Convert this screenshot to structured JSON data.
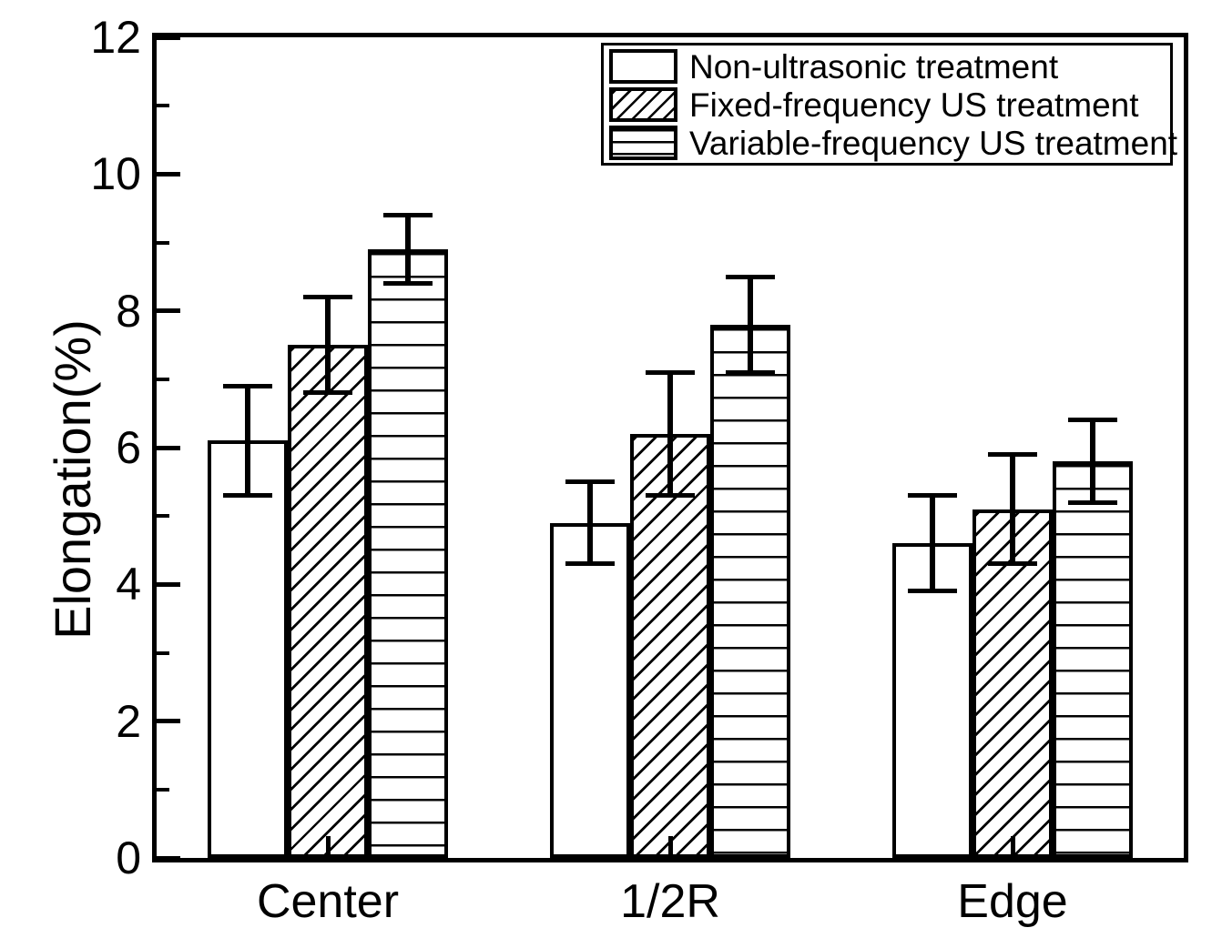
{
  "chart_data": {
    "type": "bar",
    "title": "",
    "xlabel": "",
    "ylabel": "Elongation(%)",
    "categories": [
      "Center",
      "1/2R",
      "Edge"
    ],
    "series": [
      {
        "name": "Non-ultrasonic treatment",
        "pattern": "plain",
        "values": [
          6.1,
          4.9,
          4.6
        ],
        "errors": [
          0.8,
          0.6,
          0.7
        ]
      },
      {
        "name": "Fixed-frequency US treatment",
        "pattern": "diagonal-hatch",
        "values": [
          7.5,
          6.2,
          5.1
        ],
        "errors": [
          0.7,
          0.9,
          0.8
        ]
      },
      {
        "name": "Variable-frequency US treatment",
        "pattern": "horizontal-lines",
        "values": [
          8.9,
          7.8,
          5.8
        ],
        "errors": [
          0.5,
          0.7,
          0.6
        ]
      }
    ],
    "ylim": [
      0,
      12
    ],
    "yticks": [
      0,
      2,
      4,
      6,
      8,
      10,
      12
    ],
    "minor_yticks": [
      1,
      3,
      5,
      7,
      9,
      11
    ],
    "grid": false,
    "legend_position": "top-right",
    "error_bars": true,
    "colors": {
      "foreground": "#000000",
      "background": "#ffffff"
    }
  }
}
